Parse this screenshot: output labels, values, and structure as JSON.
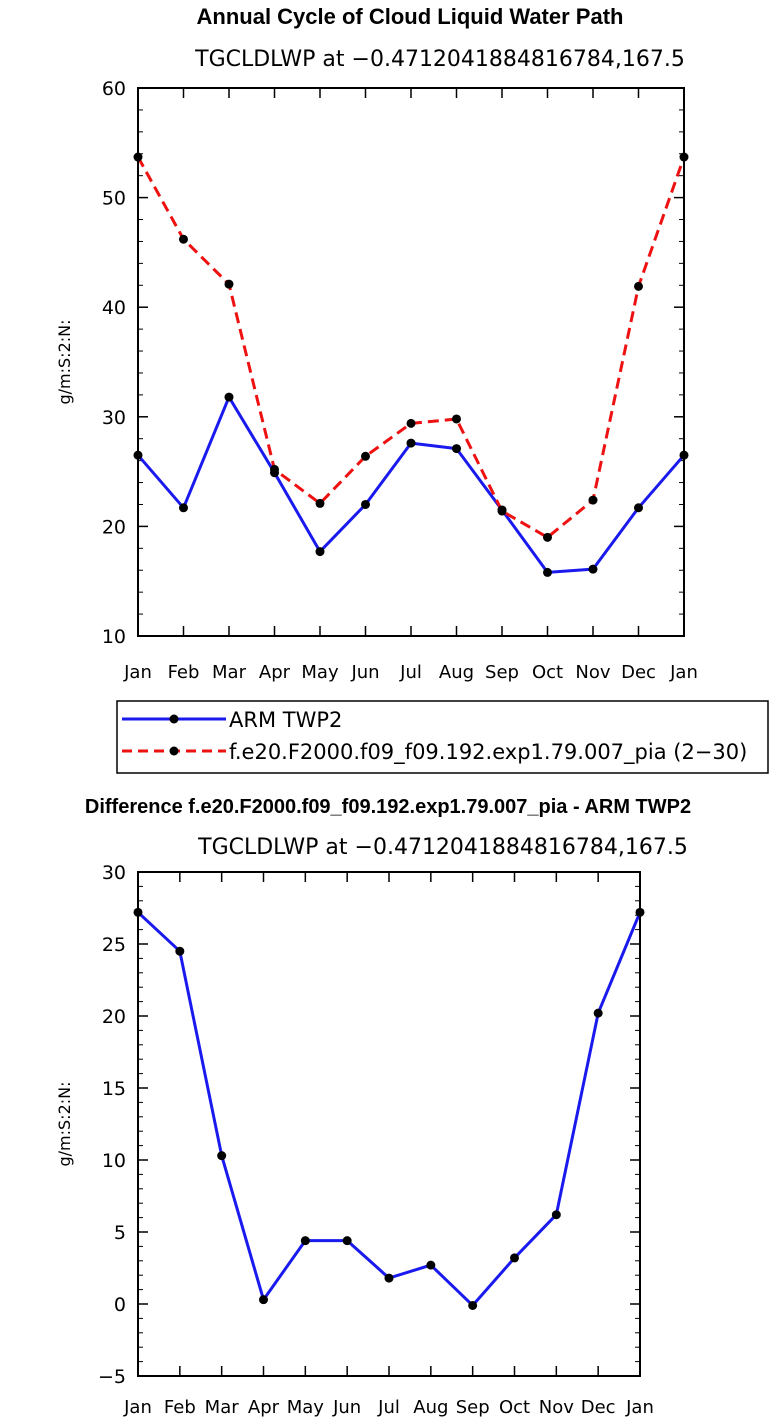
{
  "chart_data": [
    {
      "type": "line",
      "title": "Annual Cycle of Cloud Liquid Water Path",
      "subtitle": "TGCLDLWP at −0.4712041884816784,167.5",
      "xlabel": "",
      "ylabel": "g/m:S:2:N:",
      "ylim": [
        10,
        60
      ],
      "yticks": [
        "10",
        "20",
        "30",
        "40",
        "50",
        "60"
      ],
      "categories": [
        "Jan",
        "Feb",
        "Mar",
        "Apr",
        "May",
        "Jun",
        "Jul",
        "Aug",
        "Sep",
        "Oct",
        "Nov",
        "Dec",
        "Jan"
      ],
      "series": [
        {
          "name": "ARM TWP2",
          "color": "#1a1aee",
          "dash": "solid",
          "values": [
            26.5,
            21.7,
            31.8,
            24.9,
            17.7,
            22.0,
            27.6,
            27.1,
            21.5,
            15.8,
            16.1,
            21.7,
            26.5
          ]
        },
        {
          "name": "f.e20.F2000.f09_f09.192.exp1.79.007_pia (2−30)",
          "color": "#ee1111",
          "dash": "dashed",
          "values": [
            53.7,
            46.2,
            42.1,
            25.2,
            22.1,
            26.4,
            29.4,
            29.8,
            21.4,
            19.0,
            22.4,
            41.9,
            53.7
          ]
        }
      ],
      "legend_position": "below"
    },
    {
      "type": "line",
      "title": "Difference f.e20.F2000.f09_f09.192.exp1.79.007_pia - ARM TWP2",
      "subtitle": "TGCLDLWP at −0.4712041884816784,167.5",
      "xlabel": "",
      "ylabel": "g/m:S:2:N:",
      "ylim": [
        -5,
        30
      ],
      "yticks": [
        "−5",
        "0",
        "5",
        "10",
        "15",
        "20",
        "25",
        "30"
      ],
      "categories": [
        "Jan",
        "Feb",
        "Mar",
        "Apr",
        "May",
        "Jun",
        "Jul",
        "Aug",
        "Sep",
        "Oct",
        "Nov",
        "Dec",
        "Jan"
      ],
      "series": [
        {
          "name": "Difference",
          "color": "#1a1aee",
          "dash": "solid",
          "values": [
            27.2,
            24.5,
            10.3,
            0.3,
            4.4,
            4.4,
            1.8,
            2.7,
            -0.1,
            3.2,
            6.2,
            20.2,
            27.2
          ]
        }
      ]
    }
  ]
}
